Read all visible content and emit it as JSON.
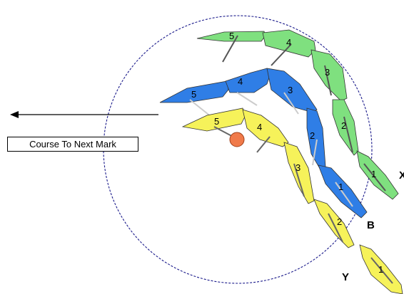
{
  "colors": {
    "green": "#7fe07f",
    "blue": "#2f7ee6",
    "yellow": "#f6f25a",
    "mark": "#f07a4a",
    "circle": "#1c1c8c"
  },
  "course_label": "Course To Next Mark",
  "boat_labels": {
    "X": "X",
    "B": "B",
    "Y": "Y"
  },
  "boats": [
    {
      "id": "X",
      "color_key": "green",
      "positions": [
        "1",
        "2",
        "3",
        "4",
        "5"
      ]
    },
    {
      "id": "B",
      "color_key": "blue",
      "positions": [
        "1",
        "2",
        "3",
        "4",
        "5"
      ]
    },
    {
      "id": "Y",
      "color_key": "yellow",
      "positions": [
        "1",
        "2",
        "3",
        "4",
        "5"
      ]
    }
  ]
}
